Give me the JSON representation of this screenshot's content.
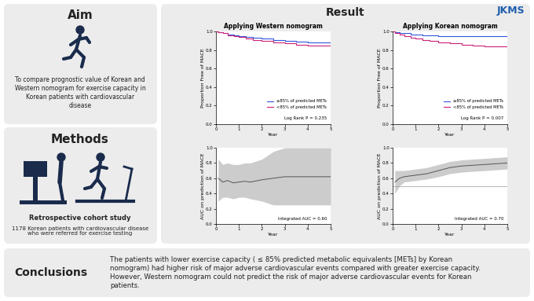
{
  "journal": "JKMS",
  "aim": {
    "title": "Aim",
    "text": "To compare prognostic value of Korean and Western nomogram for exercise capacity in Korean patients with cardiovascular disease"
  },
  "methods": {
    "title": "Methods",
    "design": "Retrospective cohort study",
    "text": "1178 Korean patients with cardiovascular disease who were referred for exercise testing"
  },
  "result": {
    "title": "Result"
  },
  "conclusions": {
    "title": "Conclusions",
    "text": "The patients with lower exercise capacity ( ≤ 85% predicted metabolic equivalents [METs] by Korean nomogram) had higher risk of major adverse cardiovascular events compared with greater exercise capacity. However, Western nomogram could not predict the risk of major adverse cardiovascular events for Korean patients."
  },
  "chart_data": [
    {
      "type": "kaplan_meier",
      "title": "Applying Western nomogram",
      "xlabel": "Year",
      "ylabel": "Proportion Free of MACE",
      "xlim": [
        0,
        5
      ],
      "ylim": [
        0.0,
        1.0
      ],
      "xticks": [
        0,
        1,
        2,
        3,
        4,
        5
      ],
      "yticks": [
        0.0,
        0.2,
        0.4,
        0.6,
        0.8,
        1.0
      ],
      "legend": "lower right",
      "annotation": "Log Rank P = 0.235",
      "series": [
        {
          "name": "≥85% of predicted METs",
          "color": "#3355dd",
          "x": [
            0,
            0.1,
            0.3,
            0.5,
            0.8,
            1.0,
            1.3,
            1.6,
            2.0,
            2.5,
            3.0,
            3.5,
            4.0,
            5.0
          ],
          "values": [
            1.0,
            0.99,
            0.98,
            0.97,
            0.96,
            0.95,
            0.94,
            0.93,
            0.92,
            0.91,
            0.9,
            0.89,
            0.88,
            0.88
          ]
        },
        {
          "name": "<85% of predicted METs",
          "color": "#cc2277",
          "x": [
            0,
            0.1,
            0.3,
            0.5,
            0.8,
            1.0,
            1.3,
            1.6,
            2.0,
            2.5,
            3.0,
            3.5,
            4.0,
            5.0
          ],
          "values": [
            1.0,
            0.99,
            0.98,
            0.96,
            0.95,
            0.94,
            0.92,
            0.91,
            0.9,
            0.88,
            0.87,
            0.86,
            0.85,
            0.85
          ]
        }
      ]
    },
    {
      "type": "kaplan_meier",
      "title": "Applying Korean nomogram",
      "xlabel": "Year",
      "ylabel": "Proportion Free of MACE",
      "xlim": [
        0,
        5
      ],
      "ylim": [
        0.0,
        1.0
      ],
      "xticks": [
        0,
        1,
        2,
        3,
        4,
        5
      ],
      "yticks": [
        0.0,
        0.2,
        0.4,
        0.6,
        0.8,
        1.0
      ],
      "legend": "lower right",
      "annotation": "Log Rank P = 0.007",
      "series": [
        {
          "name": "≥85% of predicted METs",
          "color": "#3355dd",
          "x": [
            0,
            0.1,
            0.3,
            0.5,
            0.8,
            1.0,
            1.3,
            1.6,
            2.0,
            2.5,
            3.0,
            3.5,
            4.0,
            5.0
          ],
          "values": [
            1.0,
            0.99,
            0.985,
            0.98,
            0.97,
            0.965,
            0.96,
            0.955,
            0.95,
            0.95,
            0.95,
            0.95,
            0.95,
            0.95
          ]
        },
        {
          "name": "<85% of predicted METs",
          "color": "#cc2277",
          "x": [
            0,
            0.1,
            0.3,
            0.5,
            0.8,
            1.0,
            1.3,
            1.6,
            2.0,
            2.5,
            3.0,
            3.5,
            4.0,
            5.0
          ],
          "values": [
            1.0,
            0.98,
            0.97,
            0.95,
            0.93,
            0.92,
            0.91,
            0.9,
            0.88,
            0.87,
            0.86,
            0.85,
            0.84,
            0.84
          ]
        }
      ]
    },
    {
      "type": "auc",
      "xlabel": "Year",
      "ylabel": "AUC on prediction of MACE",
      "xlim": [
        0,
        5
      ],
      "ylim": [
        0.0,
        1.0
      ],
      "xticks": [
        0,
        1,
        2,
        3,
        4,
        5
      ],
      "yticks": [
        0.0,
        0.2,
        0.4,
        0.6,
        0.8,
        1.0
      ],
      "annotation": "Integrated AUC = 0.60",
      "series": [
        {
          "color": "#555555",
          "band_color": "#cccccc",
          "x": [
            0.1,
            0.3,
            0.5,
            0.75,
            1,
            1.25,
            1.5,
            2,
            2.5,
            3,
            3.5,
            4,
            4.5,
            5
          ],
          "values": [
            0.6,
            0.55,
            0.57,
            0.54,
            0.55,
            0.56,
            0.55,
            0.58,
            0.6,
            0.62,
            0.62,
            0.62,
            0.62,
            0.62
          ],
          "lower": [
            0.3,
            0.35,
            0.35,
            0.33,
            0.35,
            0.35,
            0.33,
            0.3,
            0.25,
            0.25,
            0.25,
            0.25,
            0.25,
            0.25
          ],
          "upper": [
            0.85,
            0.78,
            0.8,
            0.78,
            0.78,
            0.8,
            0.8,
            0.85,
            0.95,
            1.0,
            1.0,
            1.0,
            1.0,
            1.0
          ]
        }
      ]
    },
    {
      "type": "auc",
      "xlabel": "Year",
      "ylabel": "AUC on prediction of MACE",
      "xlim": [
        0,
        5
      ],
      "ylim": [
        0.0,
        1.0
      ],
      "xticks": [
        0,
        1,
        2,
        3,
        4,
        5
      ],
      "yticks": [
        0.0,
        0.2,
        0.4,
        0.6,
        0.8,
        1.0
      ],
      "annotation": "Integrated AUC = 0.70",
      "reference_line": 0.5,
      "series": [
        {
          "color": "#555555",
          "band_color": "#cccccc",
          "x": [
            0.1,
            0.3,
            0.5,
            0.75,
            1,
            1.25,
            1.5,
            2,
            2.5,
            3,
            3.5,
            4,
            4.5,
            5
          ],
          "values": [
            0.55,
            0.6,
            0.62,
            0.63,
            0.64,
            0.65,
            0.66,
            0.7,
            0.74,
            0.76,
            0.77,
            0.78,
            0.79,
            0.8
          ],
          "lower": [
            0.4,
            0.5,
            0.55,
            0.56,
            0.57,
            0.58,
            0.59,
            0.62,
            0.66,
            0.68,
            0.69,
            0.7,
            0.71,
            0.72
          ],
          "upper": [
            0.7,
            0.7,
            0.7,
            0.71,
            0.72,
            0.73,
            0.74,
            0.78,
            0.82,
            0.84,
            0.85,
            0.86,
            0.87,
            0.88
          ]
        }
      ]
    }
  ]
}
